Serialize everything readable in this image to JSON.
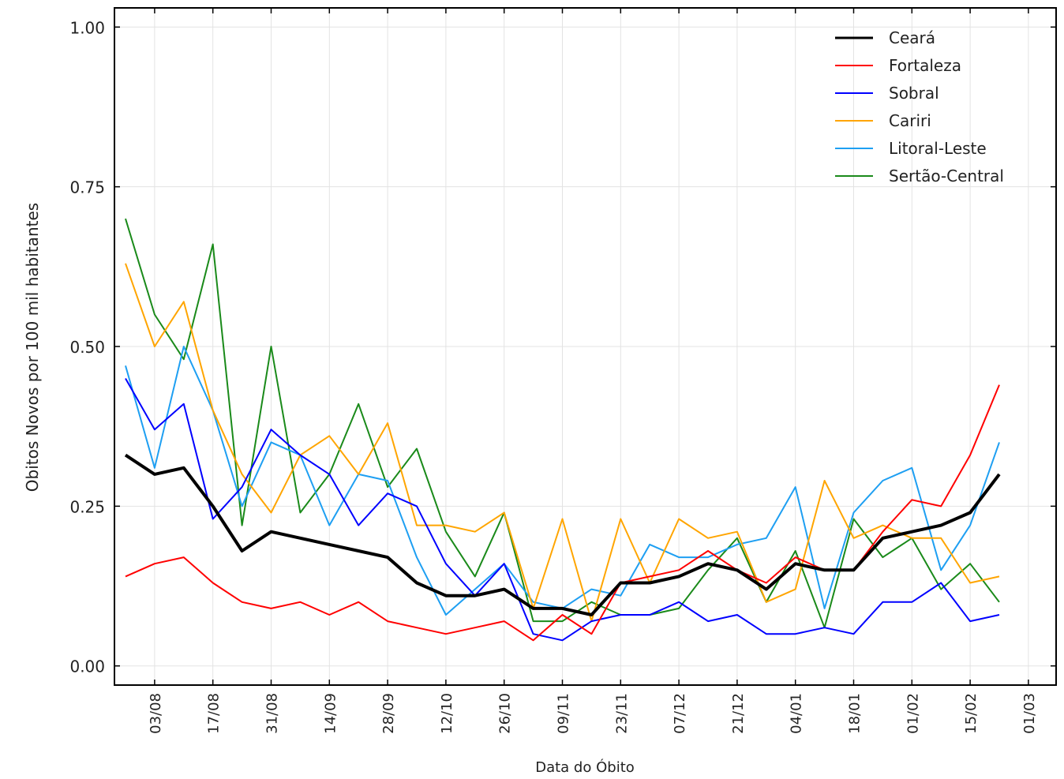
{
  "chart_data": {
    "type": "line",
    "xlabel": "Data do Óbito",
    "ylabel": "Obitos Novos por 100 mil habitantes",
    "x": [
      "27/07",
      "03/08",
      "10/08",
      "17/08",
      "24/08",
      "31/08",
      "07/09",
      "14/09",
      "21/09",
      "28/09",
      "05/10",
      "12/10",
      "19/10",
      "26/10",
      "02/11",
      "09/11",
      "16/11",
      "23/11",
      "30/11",
      "07/12",
      "14/12",
      "21/12",
      "28/12",
      "04/01",
      "11/01",
      "18/01",
      "25/01",
      "01/02",
      "08/02",
      "15/02",
      "22/02",
      "01/03"
    ],
    "xticks": [
      "03/08",
      "17/08",
      "31/08",
      "14/09",
      "28/09",
      "12/10",
      "26/10",
      "09/11",
      "23/11",
      "07/12",
      "21/12",
      "04/01",
      "18/01",
      "01/02",
      "15/02",
      "01/03"
    ],
    "ylim": [
      -0.03,
      1.03
    ],
    "yticks": [
      {
        "value": 0,
        "label": "0.00"
      },
      {
        "value": 0.25,
        "label": "0.25"
      },
      {
        "value": 0.5,
        "label": "0.50"
      },
      {
        "value": 0.75,
        "label": "0.75"
      },
      {
        "value": 1,
        "label": "1.00"
      }
    ],
    "grid": true,
    "legend": "upper right",
    "series": [
      {
        "name": "Ceará",
        "color": "#000000",
        "values": [
          0.33,
          0.3,
          0.31,
          0.25,
          0.18,
          0.21,
          0.2,
          0.19,
          0.18,
          0.17,
          0.13,
          0.11,
          0.11,
          0.12,
          0.09,
          0.09,
          0.08,
          0.13,
          0.13,
          0.14,
          0.16,
          0.15,
          0.12,
          0.16,
          0.15,
          0.15,
          0.2,
          0.21,
          0.22,
          0.24,
          0.3,
          null
        ]
      },
      {
        "name": "Fortaleza",
        "color": "#ff0000",
        "values": [
          0.14,
          0.16,
          0.17,
          0.13,
          0.1,
          0.09,
          0.1,
          0.08,
          0.1,
          0.07,
          0.06,
          0.05,
          0.06,
          0.07,
          0.04,
          0.08,
          0.05,
          0.13,
          0.14,
          0.15,
          0.18,
          0.15,
          0.13,
          0.17,
          0.15,
          0.15,
          0.21,
          0.26,
          0.25,
          0.33,
          0.44,
          null
        ]
      },
      {
        "name": "Sobral",
        "color": "#0000ff",
        "values": [
          0.45,
          0.37,
          0.41,
          0.23,
          0.28,
          0.37,
          0.33,
          0.3,
          0.22,
          0.27,
          0.25,
          0.16,
          0.11,
          0.16,
          0.05,
          0.04,
          0.07,
          0.08,
          0.08,
          0.1,
          0.07,
          0.08,
          0.05,
          0.05,
          0.06,
          0.05,
          0.1,
          0.1,
          0.13,
          0.07,
          0.08,
          null
        ]
      },
      {
        "name": "Cariri",
        "color": "#ffa500",
        "values": [
          0.63,
          0.5,
          0.57,
          0.4,
          0.3,
          0.24,
          0.33,
          0.36,
          0.3,
          0.38,
          0.22,
          0.22,
          0.21,
          0.24,
          0.09,
          0.23,
          0.07,
          0.23,
          0.13,
          0.23,
          0.2,
          0.21,
          0.1,
          0.12,
          0.29,
          0.2,
          0.22,
          0.2,
          0.2,
          0.13,
          0.14,
          null
        ]
      },
      {
        "name": "Litoral-Leste",
        "color": "#1e9ff2",
        "values": [
          0.47,
          0.31,
          0.5,
          0.4,
          0.25,
          0.35,
          0.33,
          0.22,
          0.3,
          0.29,
          0.17,
          0.08,
          0.12,
          0.16,
          0.1,
          0.09,
          0.12,
          0.11,
          0.19,
          0.17,
          0.17,
          0.19,
          0.2,
          0.28,
          0.09,
          0.24,
          0.29,
          0.31,
          0.15,
          0.22,
          0.35,
          null
        ]
      },
      {
        "name": "Sertão-Central",
        "color": "#1a8a1a",
        "values": [
          0.7,
          0.55,
          0.48,
          0.66,
          0.22,
          0.5,
          0.24,
          0.3,
          0.41,
          0.28,
          0.34,
          0.21,
          0.14,
          0.24,
          0.07,
          0.07,
          0.1,
          0.08,
          0.08,
          0.09,
          0.15,
          0.2,
          0.1,
          0.18,
          0.06,
          0.23,
          0.17,
          0.2,
          0.12,
          0.16,
          0.1,
          null
        ]
      }
    ]
  }
}
